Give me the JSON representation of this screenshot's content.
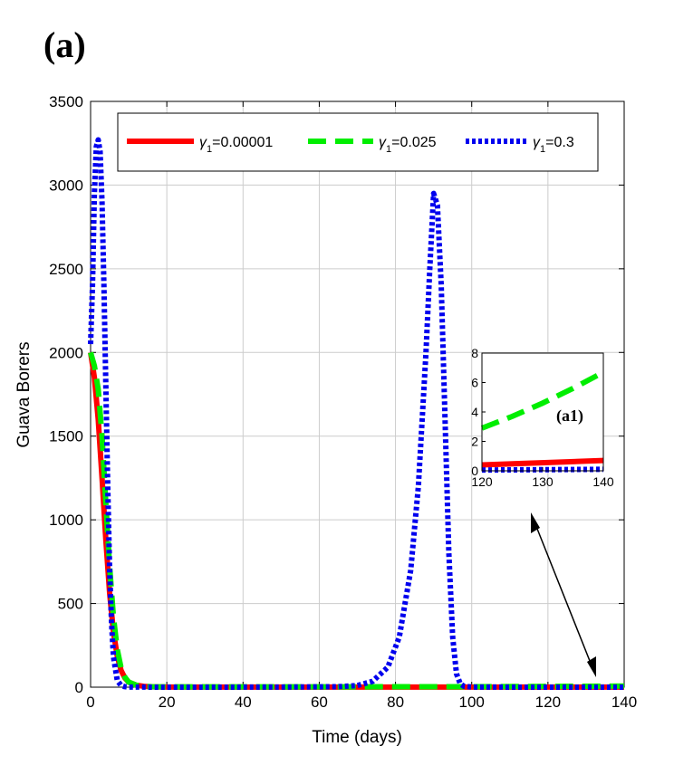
{
  "panel_label": "(a)",
  "colors": {
    "series1": "#ff0000",
    "series2": "#00ee00",
    "series3": "#0000ee",
    "grid": "#cccccc"
  },
  "chart_data": {
    "type": "line",
    "xlabel": "Time (days)",
    "ylabel": "Guava Borers",
    "xlim": [
      0,
      140
    ],
    "ylim": [
      0,
      3500
    ],
    "xticks": [
      0,
      20,
      40,
      60,
      80,
      100,
      120,
      140
    ],
    "yticks": [
      0,
      500,
      1000,
      1500,
      2000,
      2500,
      3000,
      3500
    ],
    "grid": true,
    "legend_position": "top",
    "series": [
      {
        "name": "γ1=0.00001",
        "legend_var": "γ",
        "legend_sub": "1",
        "legend_val": "=0.00001",
        "style": "solid",
        "color": "#ff0000",
        "x": [
          0,
          1,
          2,
          3,
          4,
          5,
          6,
          7,
          8,
          9,
          10,
          12,
          14,
          16,
          20,
          30,
          60,
          100,
          140
        ],
        "y": [
          2000,
          1850,
          1600,
          1250,
          880,
          560,
          330,
          185,
          100,
          55,
          30,
          12,
          5,
          2,
          1,
          0.5,
          0.4,
          0.4,
          0.6
        ]
      },
      {
        "name": "γ1=0.025",
        "legend_var": "γ",
        "legend_sub": "1",
        "legend_val": "=0.025",
        "style": "dashed",
        "color": "#00ee00",
        "x": [
          0,
          1,
          2,
          3,
          4,
          5,
          6,
          7,
          8,
          9,
          10,
          12,
          14,
          16,
          20,
          30,
          60,
          100,
          140
        ],
        "y": [
          2000,
          1920,
          1780,
          1500,
          1100,
          720,
          420,
          225,
          115,
          60,
          30,
          12,
          5,
          3,
          2,
          2,
          2,
          3,
          6.5
        ]
      },
      {
        "name": "γ1=0.3",
        "legend_var": "γ",
        "legend_sub": "1",
        "legend_val": "=0.3",
        "style": "dotted",
        "color": "#0000ee",
        "x": [
          0,
          0.5,
          1,
          1.5,
          2,
          2.5,
          3,
          3.5,
          4,
          4.5,
          5,
          5.5,
          6,
          7,
          8,
          9,
          10,
          15,
          30,
          50,
          65,
          70,
          74,
          78,
          81,
          84,
          86,
          88,
          89,
          90,
          91,
          92,
          93,
          94,
          95,
          96,
          97,
          98,
          100,
          110,
          140
        ],
        "y": [
          2050,
          2400,
          2950,
          3230,
          3270,
          3200,
          2900,
          2400,
          1800,
          1200,
          700,
          380,
          180,
          40,
          10,
          3,
          1,
          0.3,
          0.2,
          0.5,
          3,
          10,
          35,
          120,
          300,
          700,
          1200,
          2000,
          2500,
          2950,
          2880,
          2400,
          1600,
          800,
          300,
          80,
          20,
          5,
          1,
          0.2,
          0.1
        ]
      }
    ],
    "inset": {
      "label": "(a1)",
      "xlim": [
        120,
        140
      ],
      "ylim": [
        0,
        8
      ],
      "xticks": [
        120,
        130,
        140
      ],
      "yticks": [
        0,
        2,
        4,
        6,
        8
      ],
      "series": [
        {
          "x": [
            120,
            140
          ],
          "y": [
            0.4,
            0.7
          ]
        },
        {
          "x": [
            120,
            125,
            130,
            135,
            140
          ],
          "y": [
            2.9,
            3.7,
            4.6,
            5.6,
            6.7
          ]
        },
        {
          "x": [
            120,
            140
          ],
          "y": [
            0.05,
            0.1
          ]
        }
      ]
    }
  }
}
